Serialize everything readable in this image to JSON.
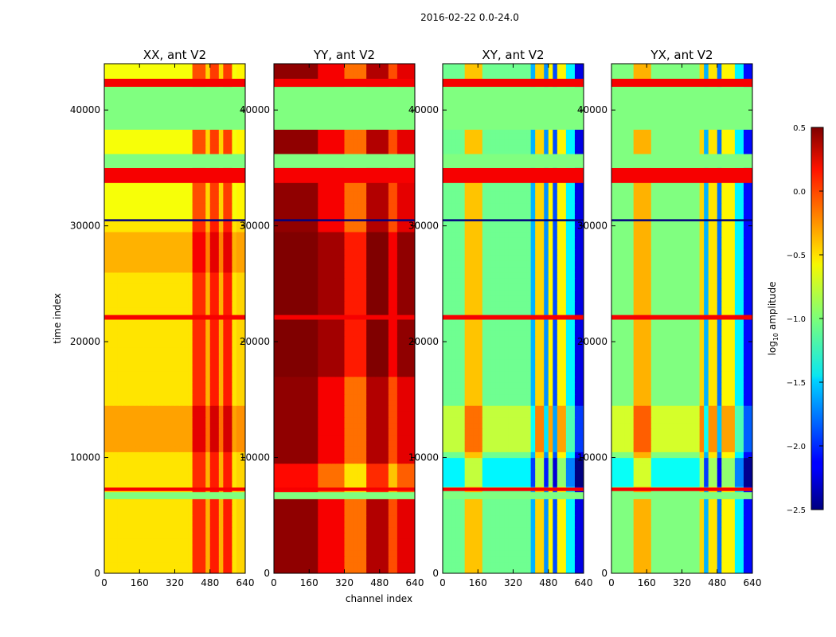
{
  "figure_title": "2016-02-22 0.0-24.0",
  "xlabel": "channel index",
  "ylabel": "time index",
  "colorbar": {
    "label_prefix": "log",
    "label_sub": "10",
    "label_suffix": " amplitude",
    "ticks": [
      "0.5",
      "0.0",
      "−0.5",
      "−1.0",
      "−1.5",
      "−2.0",
      "−2.5"
    ],
    "range": [
      -2.5,
      0.5
    ],
    "colormap": "jet"
  },
  "chart_data": [
    {
      "type": "heatmap",
      "title": "XX, ant V2",
      "xlim": [
        0,
        640
      ],
      "ylim": [
        0,
        44000
      ],
      "xticks": [
        "0",
        "160",
        "320",
        "480",
        "640"
      ],
      "yticks": [
        "0",
        "10000",
        "20000",
        "30000",
        "40000"
      ],
      "base_value": -0.55,
      "channel_bands": [
        {
          "x": [
            400,
            460
          ],
          "value": 0.0
        },
        {
          "x": [
            460,
            480
          ],
          "value": -0.4
        },
        {
          "x": [
            480,
            520
          ],
          "value": 0.05
        },
        {
          "x": [
            520,
            540
          ],
          "value": -0.4
        },
        {
          "x": [
            540,
            580
          ],
          "value": 0.05
        },
        {
          "x": [
            600,
            640
          ],
          "value": -0.5
        }
      ],
      "time_blocks": [
        {
          "y": [
            30600,
            44000
          ],
          "offset": -0.1
        },
        {
          "y": [
            26000,
            29500
          ],
          "offset": 0.15
        },
        {
          "y": [
            10500,
            14500
          ],
          "offset": 0.2
        }
      ]
    },
    {
      "type": "heatmap",
      "title": "YY, ant V2",
      "xlim": [
        0,
        640
      ],
      "ylim": [
        0,
        44000
      ],
      "xticks": [
        "0",
        "160",
        "320",
        "480",
        "640"
      ],
      "yticks": [
        "0",
        "10000",
        "20000",
        "30000",
        "40000"
      ],
      "base_value": 0.2,
      "channel_bands": [
        {
          "x": [
            0,
            200
          ],
          "value": 0.45
        },
        {
          "x": [
            200,
            320
          ],
          "value": 0.15
        },
        {
          "x": [
            320,
            420
          ],
          "value": -0.2
        },
        {
          "x": [
            420,
            520
          ],
          "value": 0.35
        },
        {
          "x": [
            520,
            560
          ],
          "value": -0.1
        },
        {
          "x": [
            560,
            640
          ],
          "value": 0.2
        }
      ],
      "time_blocks": [
        {
          "y": [
            17000,
            29500
          ],
          "offset": 0.25
        },
        {
          "y": [
            7200,
            9500
          ],
          "offset": -0.35
        }
      ]
    },
    {
      "type": "heatmap",
      "title": "XY, ant V2",
      "xlim": [
        0,
        640
      ],
      "ylim": [
        0,
        44000
      ],
      "xticks": [
        "0",
        "160",
        "320",
        "480",
        "640"
      ],
      "yticks": [
        "0",
        "10000",
        "20000",
        "30000",
        "40000"
      ],
      "base_value": -1.05,
      "channel_bands": [
        {
          "x": [
            100,
            180
          ],
          "value": -0.45
        },
        {
          "x": [
            400,
            420
          ],
          "value": -1.6
        },
        {
          "x": [
            420,
            460
          ],
          "value": -0.5
        },
        {
          "x": [
            460,
            480
          ],
          "value": -1.7
        },
        {
          "x": [
            480,
            510
          ],
          "value": -0.6
        },
        {
          "x": [
            510,
            530
          ],
          "value": -1.9
        },
        {
          "x": [
            530,
            560
          ],
          "value": -0.6
        },
        {
          "x": [
            560,
            600
          ],
          "value": -1.4
        },
        {
          "x": [
            600,
            640
          ],
          "value": -2.2
        }
      ],
      "time_blocks": [
        {
          "y": [
            7500,
            10000
          ],
          "offset": -0.35
        },
        {
          "y": [
            10500,
            14500
          ],
          "offset": 0.25
        }
      ]
    },
    {
      "type": "heatmap",
      "title": "YX, ant V2",
      "xlim": [
        0,
        640
      ],
      "ylim": [
        0,
        44000
      ],
      "xticks": [
        "0",
        "160",
        "320",
        "480",
        "640"
      ],
      "yticks": [
        "0",
        "10000",
        "20000",
        "30000",
        "40000"
      ],
      "base_value": -1.0,
      "channel_bands": [
        {
          "x": [
            100,
            180
          ],
          "value": -0.4
        },
        {
          "x": [
            400,
            430
          ],
          "value": -0.5
        },
        {
          "x": [
            430,
            450
          ],
          "value": -1.6
        },
        {
          "x": [
            450,
            490
          ],
          "value": -0.55
        },
        {
          "x": [
            490,
            510
          ],
          "value": -1.8
        },
        {
          "x": [
            510,
            560
          ],
          "value": -0.6
        },
        {
          "x": [
            560,
            600
          ],
          "value": -1.4
        },
        {
          "x": [
            600,
            640
          ],
          "value": -2.1
        }
      ],
      "time_blocks": [
        {
          "y": [
            7500,
            10000
          ],
          "offset": -0.35
        },
        {
          "y": [
            10500,
            14500
          ],
          "offset": 0.25
        }
      ]
    }
  ],
  "flagged_rows": [
    {
      "y": [
        42000,
        42700
      ],
      "value": 0.15
    },
    {
      "y": [
        38300,
        42000
      ],
      "value": -1.0
    },
    {
      "y": [
        33700,
        35000
      ],
      "value": 0.15
    },
    {
      "y": [
        35000,
        36200
      ],
      "value": -1.0
    },
    {
      "y": [
        21900,
        22300
      ],
      "value": 0.15
    },
    {
      "y": [
        6400,
        7000
      ],
      "value": -1.0
    },
    {
      "y": [
        7100,
        7400
      ],
      "value": 0.15
    }
  ]
}
